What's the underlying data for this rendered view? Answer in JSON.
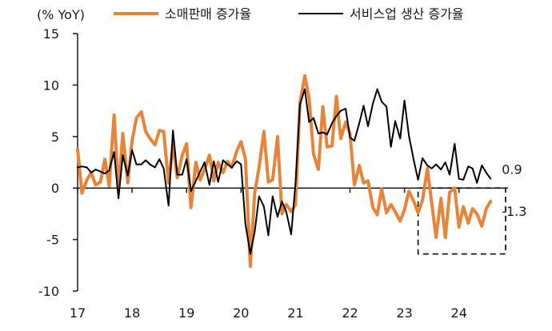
{
  "chart_data": {
    "type": "line",
    "ylabel": "(% YoY)",
    "ylim": [
      -10,
      15
    ],
    "yticks": [
      "15",
      "10",
      "5",
      "0",
      "-5",
      "-10"
    ],
    "xticks": [
      "17",
      "18",
      "19",
      "20",
      "21",
      "22",
      "23",
      "24"
    ],
    "xlim": [
      2017.0,
      2024.9
    ],
    "grid": false,
    "legend_position": "top",
    "series": [
      {
        "name": "소매판매 증가율",
        "color": "#E8833A",
        "x": [
          2017.0,
          2017.08,
          2017.17,
          2017.25,
          2017.33,
          2017.42,
          2017.5,
          2017.58,
          2017.67,
          2017.75,
          2017.83,
          2017.92,
          2018.0,
          2018.08,
          2018.17,
          2018.25,
          2018.33,
          2018.42,
          2018.5,
          2018.58,
          2018.67,
          2018.75,
          2018.83,
          2018.92,
          2019.0,
          2019.08,
          2019.17,
          2019.25,
          2019.33,
          2019.42,
          2019.5,
          2019.58,
          2019.67,
          2019.75,
          2019.83,
          2019.92,
          2020.0,
          2020.08,
          2020.17,
          2020.25,
          2020.33,
          2020.42,
          2020.5,
          2020.58,
          2020.67,
          2020.75,
          2020.83,
          2020.92,
          2021.0,
          2021.08,
          2021.17,
          2021.25,
          2021.33,
          2021.42,
          2021.5,
          2021.58,
          2021.67,
          2021.75,
          2021.83,
          2021.92,
          2022.0,
          2022.08,
          2022.17,
          2022.25,
          2022.33,
          2022.42,
          2022.5,
          2022.58,
          2022.67,
          2022.75,
          2022.83,
          2022.92,
          2023.0,
          2023.08,
          2023.17,
          2023.25,
          2023.33,
          2023.42,
          2023.5,
          2023.58,
          2023.67,
          2023.75,
          2023.83,
          2023.92,
          2024.0,
          2024.08,
          2024.17,
          2024.25,
          2024.33,
          2024.42,
          2024.5,
          2024.58
        ],
        "values": [
          3.8,
          -0.5,
          0.8,
          1.5,
          0.3,
          0.6,
          2.8,
          0.2,
          7.1,
          -0.2,
          5.3,
          0.5,
          4.6,
          6.8,
          7.4,
          5.5,
          4.8,
          4.2,
          5.6,
          5.5,
          0.5,
          4.2,
          1.0,
          3.2,
          4.3,
          -1.9,
          2.5,
          0.8,
          1.8,
          3.2,
          0.7,
          2.5,
          1.5,
          2.6,
          2.0,
          3.6,
          4.5,
          2.8,
          -7.6,
          -0.5,
          2.0,
          5.5,
          0.6,
          0.8,
          5.0,
          -2.5,
          -1.6,
          -2.3,
          -1.6,
          8.3,
          10.9,
          8.7,
          3.3,
          1.8,
          7.9,
          4.0,
          4.1,
          8.9,
          4.8,
          6.4,
          5.3,
          0.3,
          2.2,
          0.5,
          0.7,
          -1.9,
          -2.6,
          -0.1,
          -2.4,
          -1.6,
          -2.3,
          -3.2,
          -2.1,
          -0.3,
          -1.3,
          -2.4,
          -1.2,
          1.9,
          -1.5,
          -4.8,
          -1.0,
          -4.8,
          -0.4,
          0.0,
          -3.8,
          -1.8,
          -3.4,
          -2.0,
          -2.5,
          -3.7,
          -2.0,
          -1.3
        ]
      },
      {
        "name": "서비스업 생산 증가율",
        "color": "#000000",
        "x": [
          2017.0,
          2017.08,
          2017.17,
          2017.25,
          2017.33,
          2017.42,
          2017.5,
          2017.58,
          2017.67,
          2017.75,
          2017.83,
          2017.92,
          2018.0,
          2018.08,
          2018.17,
          2018.25,
          2018.33,
          2018.42,
          2018.5,
          2018.58,
          2018.67,
          2018.75,
          2018.83,
          2018.92,
          2019.0,
          2019.08,
          2019.17,
          2019.25,
          2019.33,
          2019.42,
          2019.5,
          2019.58,
          2019.67,
          2019.75,
          2019.83,
          2019.92,
          2020.0,
          2020.08,
          2020.17,
          2020.25,
          2020.33,
          2020.42,
          2020.5,
          2020.58,
          2020.67,
          2020.75,
          2020.83,
          2020.92,
          2021.0,
          2021.08,
          2021.17,
          2021.25,
          2021.33,
          2021.42,
          2021.5,
          2021.58,
          2021.67,
          2021.75,
          2021.83,
          2021.92,
          2022.0,
          2022.08,
          2022.17,
          2022.25,
          2022.33,
          2022.42,
          2022.5,
          2022.58,
          2022.67,
          2022.75,
          2022.83,
          2022.92,
          2023.0,
          2023.08,
          2023.17,
          2023.25,
          2023.33,
          2023.42,
          2023.5,
          2023.58,
          2023.67,
          2023.75,
          2023.83,
          2023.92,
          2024.0,
          2024.08,
          2024.17,
          2024.25,
          2024.33,
          2024.42,
          2024.5,
          2024.58
        ],
        "values": [
          2.0,
          2.1,
          2.0,
          1.5,
          1.8,
          1.6,
          1.4,
          1.7,
          3.5,
          -1.0,
          3.2,
          1.2,
          3.7,
          2.3,
          2.3,
          2.7,
          2.3,
          2.0,
          2.8,
          1.9,
          -1.7,
          5.6,
          1.3,
          1.3,
          2.8,
          -0.3,
          0.7,
          1.6,
          2.5,
          0.3,
          2.6,
          0.6,
          2.7,
          2.3,
          2.0,
          2.6,
          2.3,
          -3.5,
          -6.4,
          -4.3,
          -0.8,
          -1.8,
          -4.6,
          -0.8,
          -2.8,
          -1.3,
          -2.3,
          -4.5,
          0.5,
          8.1,
          9.6,
          6.4,
          6.8,
          5.3,
          5.4,
          5.2,
          6.3,
          7.0,
          7.5,
          7.7,
          4.9,
          4.6,
          6.3,
          8.0,
          6.0,
          8.2,
          9.6,
          8.4,
          7.9,
          4.0,
          6.5,
          4.8,
          8.5,
          5.1,
          2.7,
          0.8,
          2.9,
          2.2,
          1.9,
          2.3,
          1.8,
          2.5,
          1.3,
          4.3,
          0.9,
          0.8,
          2.1,
          1.9,
          0.5,
          2.2,
          1.5,
          0.9
        ]
      }
    ],
    "annotations": [
      {
        "text": "0.9",
        "series": 1
      },
      {
        "text": "-1.3",
        "series": 0
      }
    ],
    "highlight_box": {
      "x": [
        2023.25,
        2024.92
      ],
      "y": [
        -6.4,
        0.0
      ]
    }
  }
}
